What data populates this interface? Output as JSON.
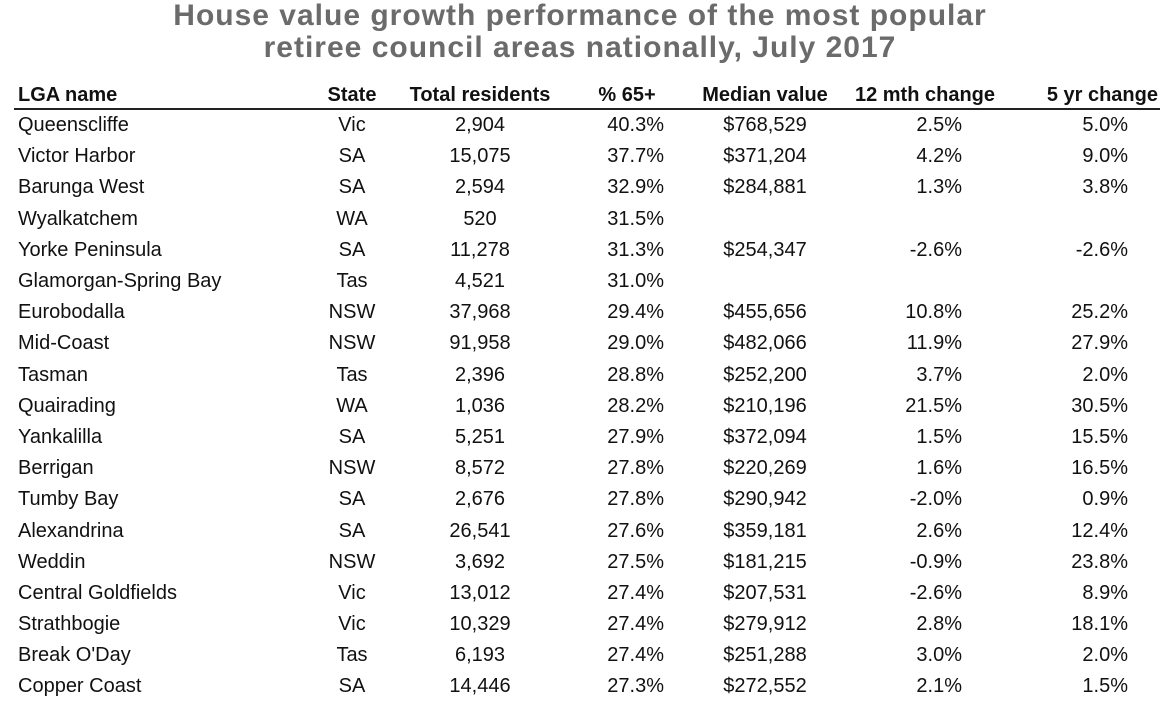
{
  "chart_data": {
    "type": "table",
    "title_lines": [
      "House value growth performance of the most popular",
      "retiree council areas nationally, July 2017"
    ],
    "columns": [
      "LGA name",
      "State",
      "Total residents",
      "% 65+",
      "Median value",
      "12 mth change",
      "5 yr change"
    ],
    "rows": [
      [
        "Queenscliffe",
        "Vic",
        "2,904",
        "40.3%",
        "$768,529",
        "2.5%",
        "5.0%"
      ],
      [
        "Victor Harbor",
        "SA",
        "15,075",
        "37.7%",
        "$371,204",
        "4.2%",
        "9.0%"
      ],
      [
        "Barunga West",
        "SA",
        "2,594",
        "32.9%",
        "$284,881",
        "1.3%",
        "3.8%"
      ],
      [
        "Wyalkatchem",
        "WA",
        "520",
        "31.5%",
        "",
        "",
        ""
      ],
      [
        "Yorke Peninsula",
        "SA",
        "11,278",
        "31.3%",
        "$254,347",
        "-2.6%",
        "-2.6%"
      ],
      [
        "Glamorgan-Spring Bay",
        "Tas",
        "4,521",
        "31.0%",
        "",
        "",
        ""
      ],
      [
        "Eurobodalla",
        "NSW",
        "37,968",
        "29.4%",
        "$455,656",
        "10.8%",
        "25.2%"
      ],
      [
        "Mid-Coast",
        "NSW",
        "91,958",
        "29.0%",
        "$482,066",
        "11.9%",
        "27.9%"
      ],
      [
        "Tasman",
        "Tas",
        "2,396",
        "28.8%",
        "$252,200",
        "3.7%",
        "2.0%"
      ],
      [
        "Quairading",
        "WA",
        "1,036",
        "28.2%",
        "$210,196",
        "21.5%",
        "30.5%"
      ],
      [
        "Yankalilla",
        "SA",
        "5,251",
        "27.9%",
        "$372,094",
        "1.5%",
        "15.5%"
      ],
      [
        "Berrigan",
        "NSW",
        "8,572",
        "27.8%",
        "$220,269",
        "1.6%",
        "16.5%"
      ],
      [
        "Tumby Bay",
        "SA",
        "2,676",
        "27.8%",
        "$290,942",
        "-2.0%",
        "0.9%"
      ],
      [
        "Alexandrina",
        "SA",
        "26,541",
        "27.6%",
        "$359,181",
        "2.6%",
        "12.4%"
      ],
      [
        "Weddin",
        "NSW",
        "3,692",
        "27.5%",
        "$181,215",
        "-0.9%",
        "23.8%"
      ],
      [
        "Central Goldfields",
        "Vic",
        "13,012",
        "27.4%",
        "$207,531",
        "-2.6%",
        "8.9%"
      ],
      [
        "Strathbogie",
        "Vic",
        "10,329",
        "27.4%",
        "$279,912",
        "2.8%",
        "18.1%"
      ],
      [
        "Break O'Day",
        "Tas",
        "6,193",
        "27.4%",
        "$251,288",
        "3.0%",
        "2.0%"
      ],
      [
        "Copper Coast",
        "SA",
        "14,446",
        "27.3%",
        "$272,552",
        "2.1%",
        "1.5%"
      ]
    ]
  },
  "colors": {
    "title": "#6b6b6b",
    "text": "#111111",
    "rule": "#222222"
  }
}
